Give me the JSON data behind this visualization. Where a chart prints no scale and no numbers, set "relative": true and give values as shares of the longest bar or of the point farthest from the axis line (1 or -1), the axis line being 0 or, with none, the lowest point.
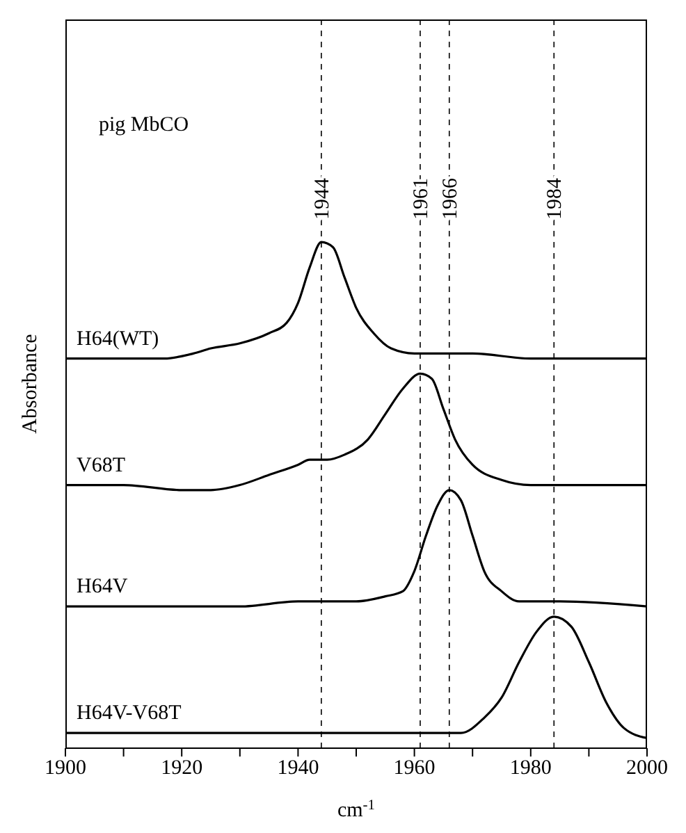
{
  "chart_data": {
    "type": "line",
    "relative": true,
    "xlabel": "cm$^{-1}$",
    "ylabel": "Absorbance",
    "annotations": [
      "pig MbCO"
    ],
    "xlim": [
      1900,
      2000
    ],
    "xticks": [
      1900,
      {
        "value": 1910,
        "label": null
      },
      1920,
      {
        "value": 1930,
        "label": null
      },
      1940,
      {
        "value": 1950,
        "label": null
      },
      1960,
      {
        "value": 1970,
        "label": null
      },
      1980,
      {
        "value": 1990,
        "label": null
      },
      2000
    ],
    "marker": "none",
    "line_style": "solid",
    "ref_lines": [
      {
        "axis": "x",
        "value": 1944,
        "label": "1944",
        "line_style": "dashed"
      },
      {
        "axis": "x",
        "value": 1961,
        "label": "1961",
        "line_style": "dashed"
      },
      {
        "axis": "x",
        "value": 1966,
        "label": "1966",
        "line_style": "dashed"
      },
      {
        "axis": "x",
        "value": 1984,
        "label": "1984",
        "line_style": "dashed"
      }
    ],
    "series": [
      {
        "name": "H64(WT)",
        "color": "#000000",
        "x": [
          1900,
          1910,
          1917,
          1922,
          1925,
          1930,
          1935,
          1938,
          1940,
          1942,
          1944,
          1946,
          1948,
          1950,
          1953,
          1956,
          1960,
          1966,
          1970,
          1980,
          1990,
          2000
        ],
        "values": [
          0.77,
          0.77,
          0.77,
          0.78,
          0.79,
          0.8,
          0.82,
          0.84,
          0.88,
          0.95,
          1.0,
          0.99,
          0.93,
          0.87,
          0.82,
          0.79,
          0.78,
          0.78,
          0.78,
          0.77,
          0.77,
          0.77
        ]
      },
      {
        "name": "V68T",
        "color": "#000000",
        "x": [
          1900,
          1910,
          1920,
          1925,
          1930,
          1935,
          1940,
          1942,
          1945,
          1948,
          1952,
          1955,
          1958,
          1961,
          1963,
          1965,
          1967,
          1970,
          1975,
          1980,
          2000
        ],
        "values": [
          0.52,
          0.52,
          0.51,
          0.51,
          0.52,
          0.54,
          0.56,
          0.57,
          0.57,
          0.58,
          0.61,
          0.66,
          0.71,
          0.74,
          0.73,
          0.67,
          0.61,
          0.56,
          0.53,
          0.52,
          0.52
        ]
      },
      {
        "name": "H64V",
        "color": "#000000",
        "x": [
          1900,
          1920,
          1930,
          1940,
          1950,
          1955,
          1958,
          1960,
          1962,
          1964,
          1966,
          1968,
          1970,
          1972,
          1975,
          1978,
          1985,
          2000
        ],
        "values": [
          0.28,
          0.28,
          0.28,
          0.29,
          0.29,
          0.3,
          0.31,
          0.35,
          0.42,
          0.48,
          0.51,
          0.49,
          0.42,
          0.35,
          0.31,
          0.29,
          0.29,
          0.28
        ]
      },
      {
        "name": "H64V-V68T",
        "color": "#000000",
        "x": [
          1900,
          1920,
          1940,
          1960,
          1968,
          1972,
          1975,
          1978,
          1981,
          1984,
          1987,
          1990,
          1993,
          1996,
          2000
        ],
        "values": [
          0.03,
          0.03,
          0.03,
          0.03,
          0.03,
          0.06,
          0.1,
          0.17,
          0.23,
          0.26,
          0.24,
          0.17,
          0.09,
          0.04,
          0.02
        ]
      }
    ]
  }
}
